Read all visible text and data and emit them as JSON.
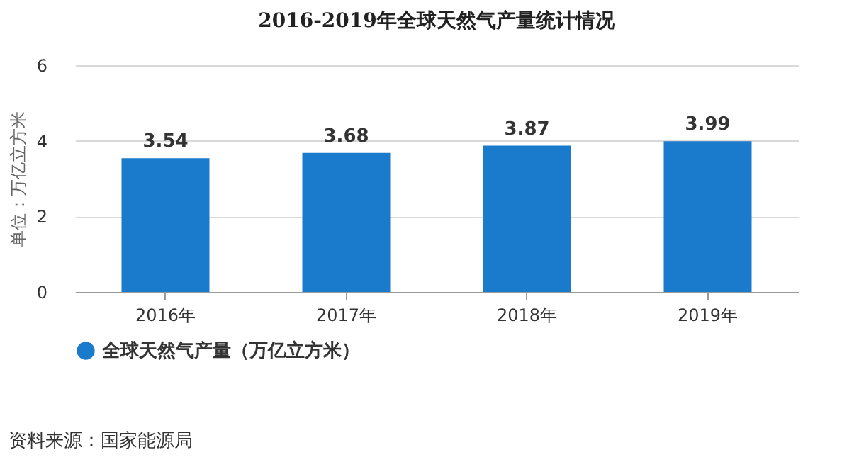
{
  "chart_data": {
    "type": "bar",
    "title": "2016-2019年全球天然气产量统计情况",
    "categories": [
      "2016年",
      "2017年",
      "2018年",
      "2019年"
    ],
    "series": [
      {
        "name": "全球天然气产量（万亿立方米）",
        "color": "#1a7acb",
        "values": [
          3.54,
          3.68,
          3.87,
          3.99
        ]
      }
    ],
    "ylabel": "单位：万亿立方米",
    "ylim": [
      0,
      6
    ],
    "yticks": [
      0,
      2,
      4,
      6
    ],
    "grid": "y",
    "legend": "bottom",
    "data_labels": true,
    "annotations": [
      "资料来源：国家能源局"
    ]
  }
}
